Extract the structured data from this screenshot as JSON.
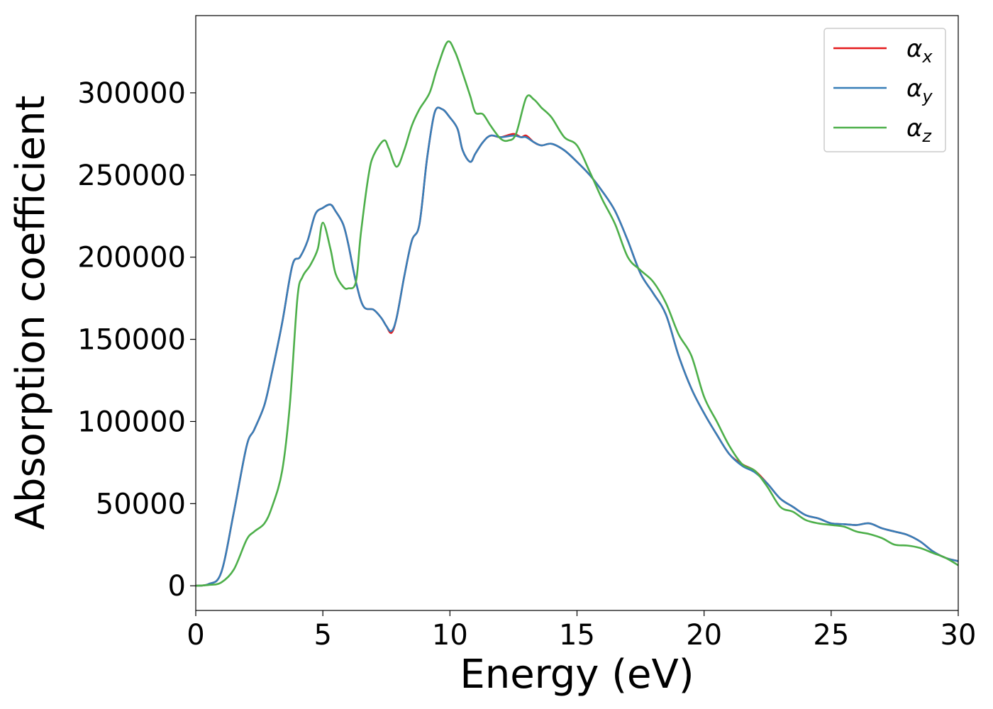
{
  "chart_data": {
    "type": "line",
    "xlabel": "Energy (eV)",
    "ylabel": "Absorption coefficient",
    "xlim": [
      0,
      30
    ],
    "ylim": [
      -15000,
      347000
    ],
    "xticks": [
      0,
      5,
      10,
      15,
      20,
      25,
      30
    ],
    "xtick_labels": [
      "0",
      "5",
      "10",
      "15",
      "20",
      "25",
      "30"
    ],
    "yticks": [
      0,
      50000,
      100000,
      150000,
      200000,
      250000,
      300000
    ],
    "ytick_labels": [
      "0",
      "50000",
      "100000",
      "150000",
      "200000",
      "250000",
      "300000"
    ],
    "grid": false,
    "legend_position": "top-right",
    "series": [
      {
        "name": "α",
        "subscript": "x",
        "color": "#e41a1c",
        "x": [
          0,
          0.5,
          1.0,
          1.5,
          2.0,
          2.3,
          2.7,
          3.0,
          3.4,
          3.8,
          4.1,
          4.4,
          4.7,
          5.0,
          5.3,
          5.5,
          5.8,
          6.0,
          6.3,
          6.6,
          7.0,
          7.3,
          7.5,
          7.7,
          7.9,
          8.2,
          8.5,
          8.8,
          9.1,
          9.4,
          9.7,
          10.0,
          10.3,
          10.5,
          10.8,
          11.0,
          11.3,
          11.6,
          12.0,
          12.5,
          12.8,
          13.0,
          13.3,
          13.6,
          14.0,
          14.5,
          15.0,
          15.5,
          16.0,
          16.5,
          17.0,
          17.5,
          18.0,
          18.5,
          19.0,
          19.5,
          20.0,
          20.5,
          21.0,
          21.5,
          22.0,
          22.5,
          23.0,
          23.5,
          24.0,
          24.5,
          25.0,
          25.5,
          26.0,
          26.5,
          27.0,
          27.5,
          28.0,
          28.5,
          29.0,
          29.5,
          30.0
        ],
        "y": [
          0,
          1000,
          8000,
          45000,
          85000,
          95000,
          110000,
          130000,
          160000,
          195000,
          200000,
          210000,
          226000,
          230000,
          232000,
          228000,
          220000,
          208000,
          185000,
          170000,
          168000,
          163000,
          158000,
          154000,
          163000,
          188000,
          210000,
          220000,
          260000,
          288000,
          290000,
          285000,
          278000,
          265000,
          258000,
          263000,
          270000,
          274000,
          273000,
          275000,
          273000,
          274000,
          270000,
          268000,
          269000,
          265000,
          258000,
          250000,
          240000,
          228000,
          210000,
          190000,
          178000,
          165000,
          140000,
          120000,
          105000,
          92000,
          80000,
          74000,
          70000,
          62000,
          53000,
          48000,
          43000,
          41000,
          38000,
          37500,
          37000,
          38000,
          35000,
          33000,
          31000,
          27000,
          21000,
          17000,
          15000
        ]
      },
      {
        "name": "α",
        "subscript": "y",
        "color": "#377eb8",
        "x": [
          0,
          0.5,
          1.0,
          1.5,
          2.0,
          2.3,
          2.7,
          3.0,
          3.4,
          3.8,
          4.1,
          4.4,
          4.7,
          5.0,
          5.3,
          5.5,
          5.8,
          6.0,
          6.3,
          6.6,
          7.0,
          7.3,
          7.5,
          7.7,
          7.9,
          8.2,
          8.5,
          8.8,
          9.1,
          9.4,
          9.7,
          10.0,
          10.3,
          10.5,
          10.8,
          11.0,
          11.3,
          11.6,
          12.0,
          12.5,
          12.8,
          13.0,
          13.3,
          13.6,
          14.0,
          14.5,
          15.0,
          15.5,
          16.0,
          16.5,
          17.0,
          17.5,
          18.0,
          18.5,
          19.0,
          19.5,
          20.0,
          20.5,
          21.0,
          21.5,
          22.0,
          22.5,
          23.0,
          23.5,
          24.0,
          24.5,
          25.0,
          25.5,
          26.0,
          26.5,
          27.0,
          27.5,
          28.0,
          28.5,
          29.0,
          29.5,
          30.0
        ],
        "y": [
          0,
          1000,
          8000,
          45000,
          85000,
          95000,
          110000,
          130000,
          160000,
          195000,
          200000,
          210000,
          226000,
          230000,
          232000,
          228000,
          220000,
          208000,
          185000,
          170000,
          168000,
          163000,
          158000,
          155000,
          163000,
          188000,
          210000,
          220000,
          260000,
          288000,
          290000,
          285000,
          278000,
          265000,
          258000,
          263000,
          270000,
          274000,
          273000,
          274000,
          273000,
          273000,
          270000,
          268000,
          269000,
          265000,
          258000,
          250000,
          240000,
          228000,
          210000,
          190000,
          178000,
          165000,
          140000,
          120000,
          105000,
          92000,
          80000,
          73000,
          69000,
          62000,
          53000,
          48000,
          43000,
          41000,
          38000,
          37500,
          37000,
          38000,
          35000,
          33000,
          31000,
          27000,
          21000,
          17000,
          15000
        ]
      },
      {
        "name": "α",
        "subscript": "z",
        "color": "#4daf4a",
        "x": [
          0,
          0.5,
          1.0,
          1.5,
          2.0,
          2.3,
          2.7,
          3.0,
          3.4,
          3.7,
          4.0,
          4.2,
          4.5,
          4.8,
          5.0,
          5.3,
          5.5,
          5.8,
          6.0,
          6.3,
          6.5,
          6.8,
          7.0,
          7.4,
          7.6,
          7.9,
          8.2,
          8.5,
          8.8,
          9.2,
          9.5,
          9.9,
          10.2,
          10.5,
          10.8,
          11.0,
          11.3,
          11.6,
          12.0,
          12.3,
          12.6,
          13.0,
          13.3,
          13.6,
          14.0,
          14.5,
          15.0,
          15.5,
          16.0,
          16.5,
          17.0,
          17.5,
          18.0,
          18.5,
          19.0,
          19.5,
          20.0,
          20.5,
          21.0,
          21.5,
          22.0,
          22.5,
          23.0,
          23.5,
          24.0,
          24.5,
          25.0,
          25.5,
          26.0,
          26.5,
          27.0,
          27.5,
          28.0,
          28.5,
          29.0,
          29.5,
          30.0
        ],
        "y": [
          0,
          500,
          2000,
          10000,
          28000,
          33000,
          38000,
          48000,
          70000,
          110000,
          175000,
          188000,
          195000,
          205000,
          221000,
          205000,
          190000,
          182000,
          181000,
          185000,
          215000,
          250000,
          262000,
          271000,
          266000,
          255000,
          265000,
          280000,
          290000,
          300000,
          315000,
          331000,
          325000,
          312000,
          298000,
          288000,
          287000,
          280000,
          272000,
          271000,
          275000,
          297000,
          296000,
          291000,
          285000,
          273000,
          268000,
          252000,
          235000,
          220000,
          200000,
          192000,
          185000,
          172000,
          153000,
          140000,
          115000,
          100000,
          85000,
          74000,
          70000,
          60000,
          48000,
          45000,
          40000,
          38000,
          37000,
          36000,
          33000,
          31500,
          29000,
          25000,
          24500,
          23000,
          20000,
          17000,
          12500
        ]
      }
    ]
  }
}
